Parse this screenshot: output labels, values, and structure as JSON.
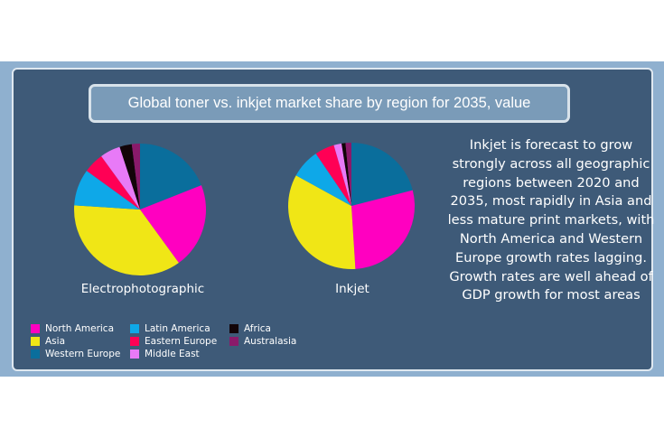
{
  "title": "Global toner vs. inkjet market share by region for 2035, value",
  "note": "Inkjet is forecast to grow strongly across all geographic regions between 2020 and 2035, most rapidly in Asia and less mature print markets, with North America and Western Europe growth rates lagging. Growth rates are well ahead of GDP growth for most areas",
  "colors": {
    "background": "#3e5a78",
    "band": "#8fb0cf",
    "title_box": "#7a9bb8"
  },
  "chart_data": [
    {
      "type": "pie",
      "title": "Electrophotographic",
      "start": "top",
      "direction": "clockwise",
      "categories": [
        "Western Europe",
        "North America",
        "Asia",
        "Latin America",
        "Eastern Europe",
        "Middle East",
        "Africa",
        "Australasia"
      ],
      "values": [
        19,
        21,
        36,
        9,
        5,
        5,
        3,
        2
      ],
      "colors": [
        "#0a6e9c",
        "#ff00c0",
        "#f0e616",
        "#0ea8e8",
        "#ff0055",
        "#e87af7",
        "#120408",
        "#8a1a6a"
      ]
    },
    {
      "type": "pie",
      "title": "Inkjet",
      "start": "top",
      "direction": "clockwise",
      "categories": [
        "Western Europe",
        "North America",
        "Asia",
        "Latin America",
        "Eastern Europe",
        "Middle East",
        "Africa",
        "Australasia"
      ],
      "values": [
        21,
        28,
        34,
        7.5,
        5,
        2,
        1,
        1.5
      ],
      "colors": [
        "#0a6e9c",
        "#ff00c0",
        "#f0e616",
        "#0ea8e8",
        "#ff0055",
        "#e87af7",
        "#120408",
        "#8a1a6a"
      ]
    }
  ],
  "legend": [
    {
      "label": "North America",
      "color": "#ff00c0"
    },
    {
      "label": "Asia",
      "color": "#f0e616"
    },
    {
      "label": "Western Europe",
      "color": "#0a6e9c"
    },
    {
      "label": "Latin America",
      "color": "#0ea8e8"
    },
    {
      "label": "Eastern Europe",
      "color": "#ff0055"
    },
    {
      "label": "Middle East",
      "color": "#e87af7"
    },
    {
      "label": "Africa",
      "color": "#120408"
    },
    {
      "label": "Australasia",
      "color": "#8a1a6a"
    }
  ]
}
